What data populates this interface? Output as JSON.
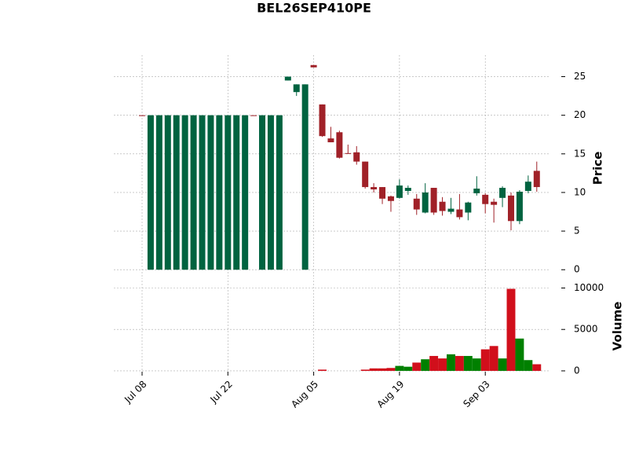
{
  "chart_data": {
    "type": "candlestick",
    "title": "BEL26SEP410PE",
    "ylabel": "Price",
    "volume_label": "Volume",
    "categories": [
      "Jul 08",
      null,
      null,
      null,
      null,
      null,
      null,
      null,
      null,
      null,
      "Jul 22",
      null,
      null,
      null,
      null,
      null,
      null,
      null,
      null,
      null,
      "Aug 05",
      null,
      null,
      null,
      null,
      null,
      null,
      null,
      null,
      null,
      "Aug 19",
      null,
      null,
      null,
      null,
      null,
      null,
      null,
      null,
      null,
      "Sep 03",
      null,
      null,
      null,
      null,
      null,
      null
    ],
    "open": [
      20,
      0,
      0,
      0,
      0,
      0,
      0,
      0,
      0,
      0,
      0,
      0,
      0,
      20,
      0,
      0,
      0,
      24.5,
      23,
      0,
      26.5,
      21.4,
      17,
      17.8,
      15.1,
      15.2,
      14,
      10.7,
      10.7,
      9.5,
      9.3,
      10.2,
      9.2,
      7.4,
      10.6,
      8.8,
      7.5,
      7.8,
      7.4,
      9.9,
      9.7,
      8.8,
      9.3,
      9.6,
      6.3,
      10.2,
      12.8
    ],
    "high": [
      20,
      20,
      20,
      20,
      20,
      20,
      20,
      20,
      20,
      20,
      20,
      20,
      20,
      20,
      20,
      20,
      20,
      25,
      24,
      24,
      26.5,
      21.4,
      18.5,
      18,
      16.2,
      16,
      14,
      11.2,
      10.7,
      9.6,
      11.7,
      10.9,
      9.8,
      11.2,
      10.6,
      9.4,
      9.3,
      9.8,
      8.8,
      12.1,
      9.9,
      9.2,
      10.8,
      10,
      10.3,
      12.2,
      14
    ],
    "low": [
      20,
      0,
      0,
      0,
      0,
      0,
      0,
      0,
      0,
      0,
      0,
      0,
      0,
      20,
      0,
      0,
      0,
      24.5,
      22.5,
      0,
      26.2,
      17.2,
      16.5,
      14.4,
      15,
      13.6,
      10.5,
      10,
      8.5,
      7.5,
      9.2,
      9.7,
      7.1,
      7.3,
      7.1,
      7,
      7.2,
      6.5,
      6.4,
      9.6,
      7.3,
      6.1,
      8.1,
      5.1,
      5.9,
      9.9,
      10.1
    ],
    "close": [
      20,
      20,
      20,
      20,
      20,
      20,
      20,
      20,
      20,
      20,
      20,
      20,
      20,
      20,
      20,
      20,
      20,
      25,
      24,
      24,
      26.2,
      17.3,
      16.5,
      14.5,
      15,
      14,
      10.7,
      10.4,
      9.2,
      8.9,
      10.9,
      10.6,
      7.8,
      10,
      7.4,
      7.6,
      7.9,
      6.8,
      8.7,
      10.5,
      8.5,
      8.4,
      10.6,
      6.3,
      10.1,
      11.4,
      10.7
    ],
    "volume": [
      0,
      0,
      0,
      0,
      0,
      0,
      0,
      0,
      0,
      0,
      0,
      0,
      0,
      0,
      0,
      0,
      0,
      0,
      0,
      0,
      0,
      150,
      0,
      0,
      0,
      0,
      150,
      300,
      300,
      350,
      600,
      500,
      1000,
      1400,
      1800,
      1500,
      2000,
      1800,
      1800,
      1500,
      2600,
      3000,
      1500,
      9900,
      3900,
      1300,
      800
    ],
    "up_color": "#006340",
    "down_color": "#a02128",
    "volume_up_color": "#008000",
    "volume_down_color": "#d10f1b",
    "ylim": [
      -1.2,
      27.8
    ],
    "yticks": [
      0,
      5,
      10,
      15,
      20,
      25
    ],
    "volume_ylim": [
      -100,
      10900
    ],
    "volume_yticks": [
      0,
      5000,
      10000
    ],
    "grid": true
  }
}
